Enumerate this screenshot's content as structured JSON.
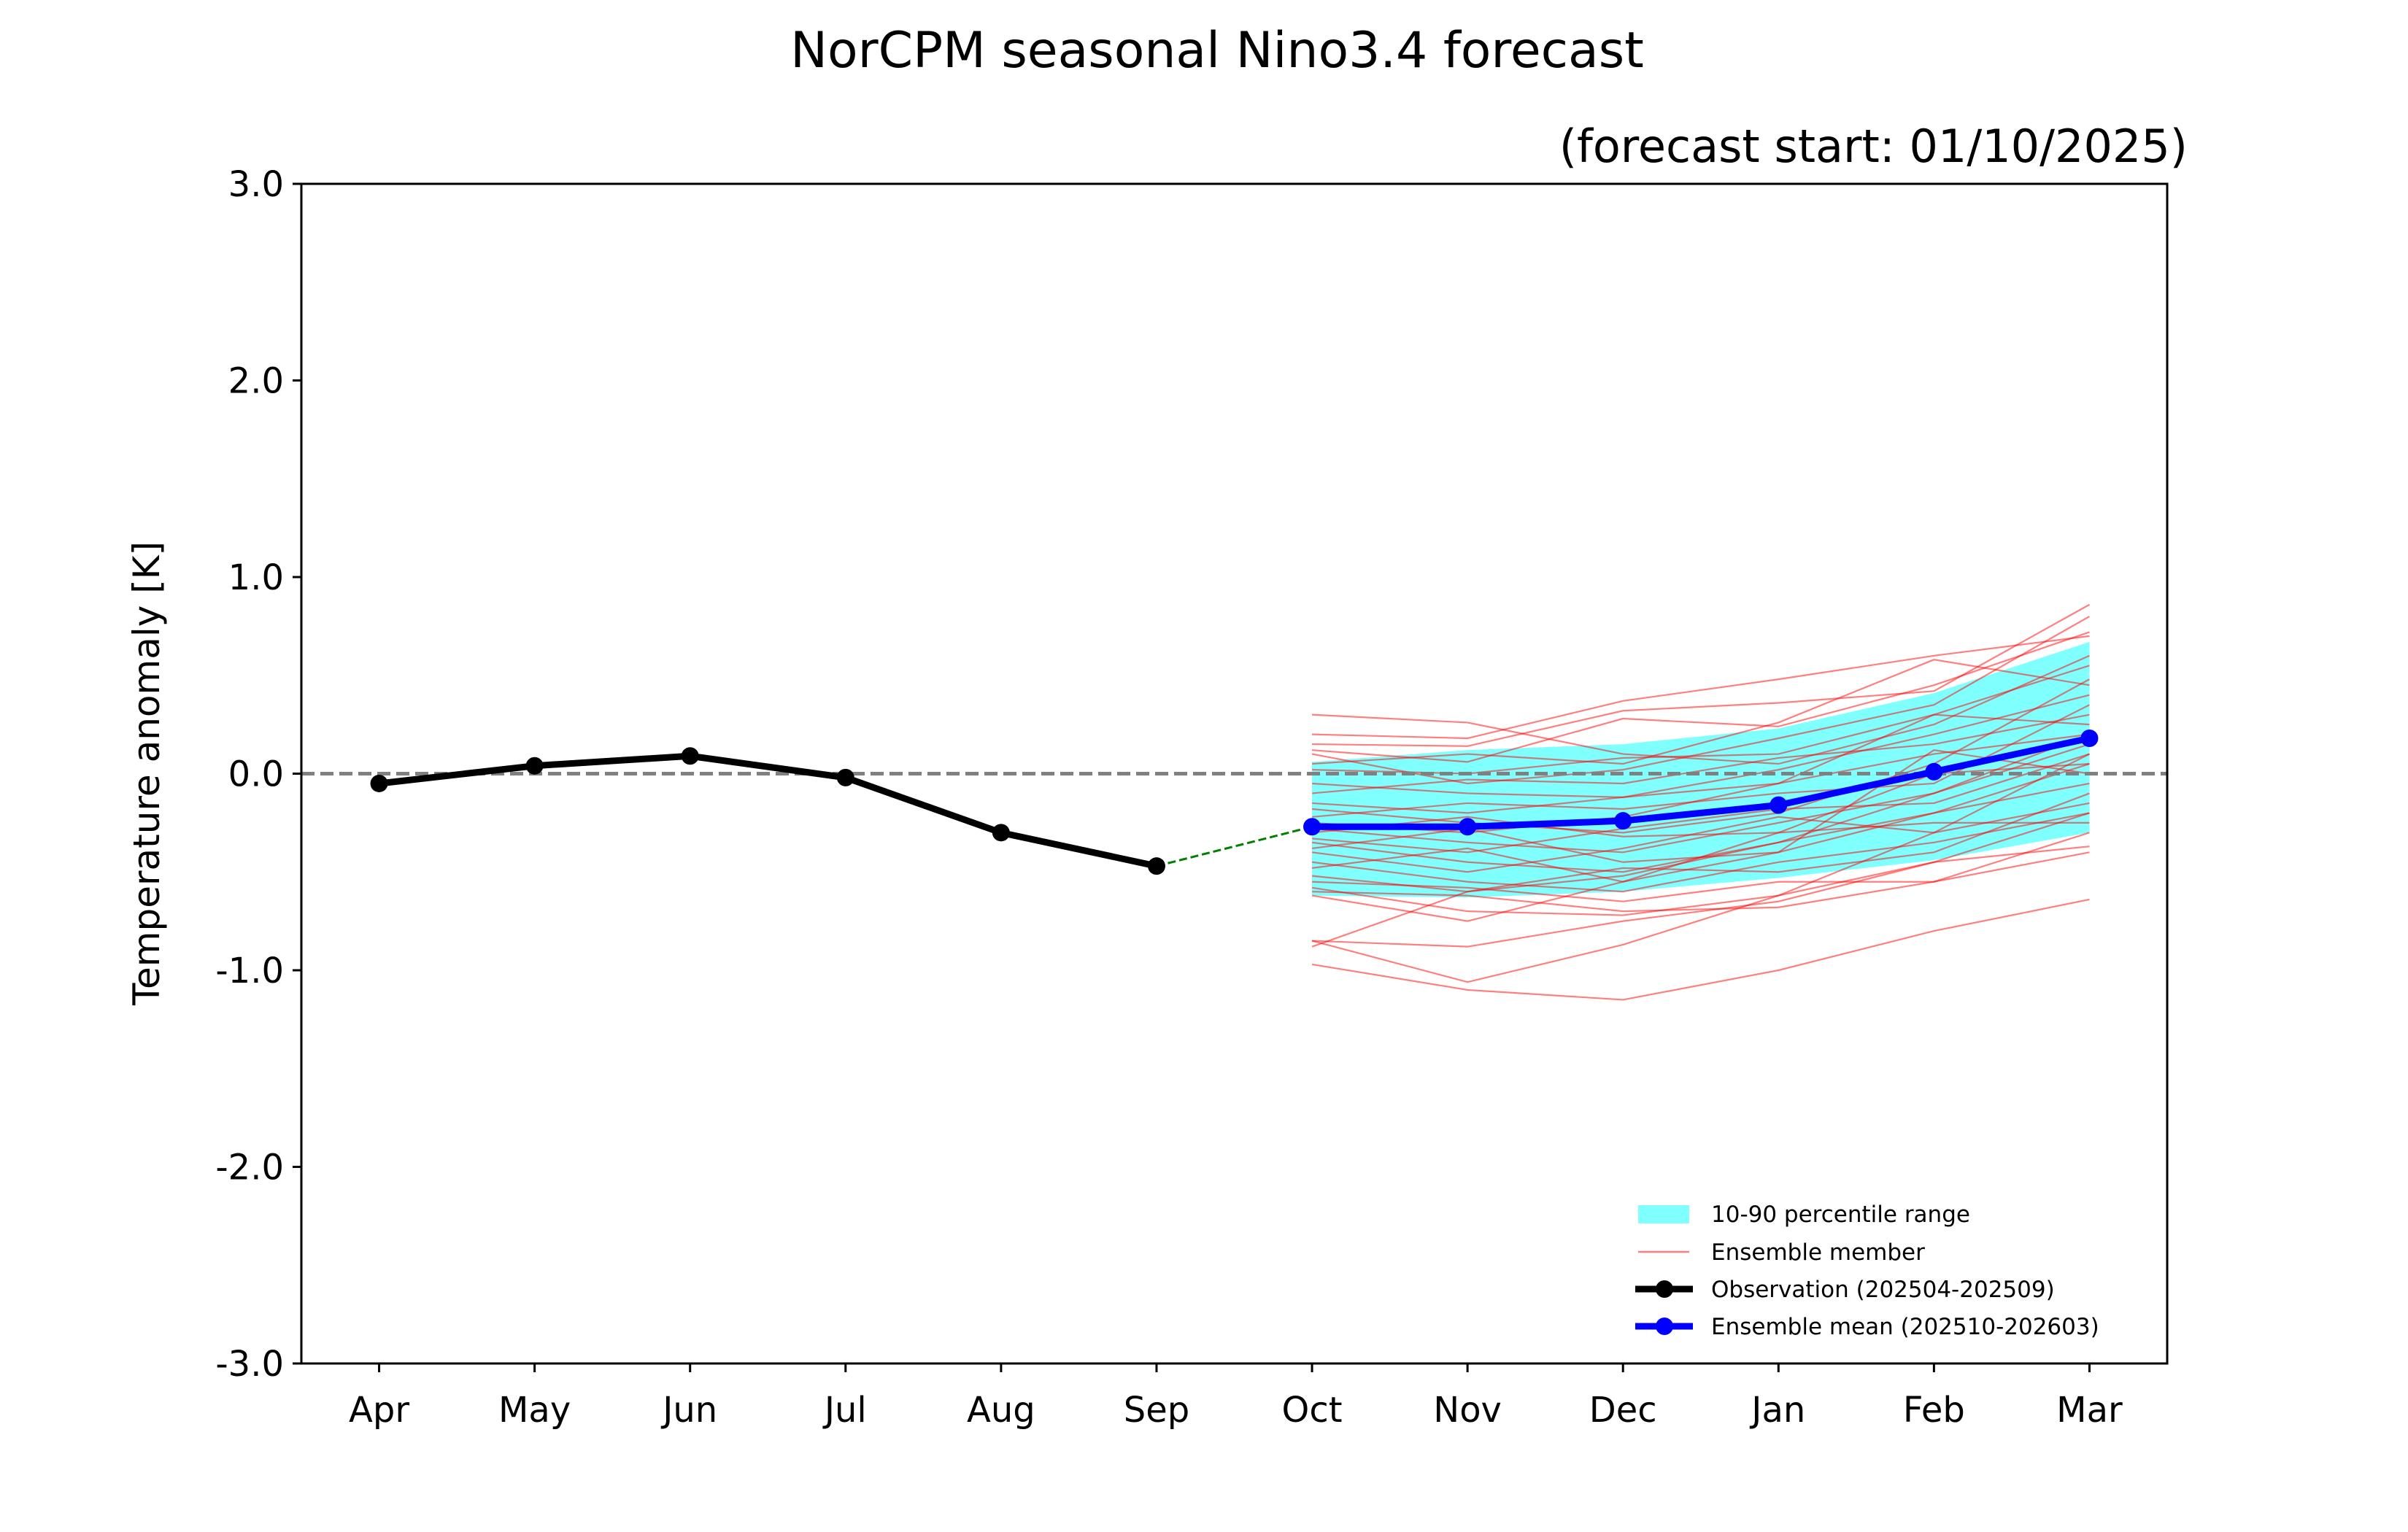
{
  "chart_data": {
    "type": "line",
    "title": "NorCPM seasonal Nino3.4 forecast",
    "subtitle": "(forecast start: 01/10/2025)",
    "xlabel": "",
    "ylabel": "Temperature anomaly [K]",
    "ylim": [
      -3.0,
      3.0
    ],
    "yticks": [
      "3.0",
      "2.0",
      "1.0",
      "0.0",
      "-1.0",
      "-2.0",
      "-3.0"
    ],
    "ytick_values": [
      3,
      2,
      1,
      0,
      -1,
      -2,
      -3
    ],
    "categories": [
      "Apr",
      "May",
      "Jun",
      "Jul",
      "Aug",
      "Sep",
      "Oct",
      "Nov",
      "Dec",
      "Jan",
      "Feb",
      "Mar"
    ],
    "zero_line": 0.0,
    "observation": {
      "name": "Observation (202504-202509)",
      "months": [
        "Apr",
        "May",
        "Jun",
        "Jul",
        "Aug",
        "Sep"
      ],
      "values": [
        -0.05,
        0.04,
        0.09,
        -0.02,
        -0.3,
        -0.47
      ],
      "color": "#000000"
    },
    "ensemble_mean": {
      "name": "Ensemble mean (202510-202603)",
      "months": [
        "Oct",
        "Nov",
        "Dec",
        "Jan",
        "Feb",
        "Mar"
      ],
      "values": [
        -0.27,
        -0.27,
        -0.24,
        -0.16,
        0.01,
        0.18
      ],
      "color": "#0000ff"
    },
    "connector": {
      "from": "Sep",
      "to": "Oct",
      "values": [
        -0.47,
        -0.27
      ],
      "color": "#008000"
    },
    "percentile_range": {
      "name": "10-90 percentile range",
      "months": [
        "Oct",
        "Nov",
        "Dec",
        "Jan",
        "Feb",
        "Mar"
      ],
      "lower": [
        -0.62,
        -0.63,
        -0.6,
        -0.53,
        -0.44,
        -0.3
      ],
      "upper": [
        0.06,
        0.12,
        0.15,
        0.23,
        0.41,
        0.67
      ],
      "color": "#80ffff"
    },
    "ensemble_members": {
      "name": "Ensemble member",
      "color": "#ff0000",
      "months": [
        "Oct",
        "Nov",
        "Dec",
        "Jan",
        "Feb",
        "Mar"
      ],
      "members": [
        [
          0.3,
          0.26,
          0.1,
          0.05,
          0.25,
          0.6
        ],
        [
          0.2,
          0.18,
          0.37,
          0.48,
          0.6,
          0.7
        ],
        [
          0.15,
          0.14,
          0.32,
          0.36,
          0.42,
          0.86
        ],
        [
          0.12,
          0.06,
          0.28,
          0.24,
          0.45,
          0.72
        ],
        [
          0.1,
          -0.05,
          0.02,
          0.18,
          0.35,
          0.8
        ],
        [
          0.05,
          0.1,
          0.05,
          0.26,
          0.58,
          0.45
        ],
        [
          0.02,
          0.0,
          0.08,
          0.1,
          0.3,
          0.55
        ],
        [
          -0.05,
          -0.1,
          -0.12,
          0.02,
          0.2,
          0.4
        ],
        [
          -0.1,
          -0.03,
          -0.05,
          0.08,
          0.15,
          0.3
        ],
        [
          -0.15,
          -0.2,
          -0.12,
          -0.05,
          0.3,
          0.25
        ],
        [
          -0.18,
          -0.25,
          -0.3,
          -0.2,
          0.05,
          0.48
        ],
        [
          -0.22,
          -0.15,
          -0.18,
          -0.1,
          -0.05,
          0.35
        ],
        [
          -0.25,
          -0.3,
          -0.22,
          -0.05,
          0.1,
          0.2
        ],
        [
          -0.28,
          -0.35,
          -0.4,
          -0.25,
          -0.1,
          0.15
        ],
        [
          -0.3,
          -0.22,
          -0.32,
          -0.3,
          0.0,
          0.05
        ],
        [
          -0.33,
          -0.4,
          -0.28,
          -0.18,
          -0.15,
          0.1
        ],
        [
          -0.35,
          -0.45,
          -0.5,
          -0.35,
          -0.2,
          -0.05
        ],
        [
          -0.38,
          -0.28,
          -0.45,
          -0.4,
          0.12,
          0.0
        ],
        [
          -0.4,
          -0.5,
          -0.38,
          -0.22,
          -0.3,
          -0.15
        ],
        [
          -0.45,
          -0.55,
          -0.6,
          -0.45,
          -0.35,
          -0.2
        ],
        [
          -0.48,
          -0.38,
          -0.55,
          -0.3,
          -0.25,
          -0.25
        ],
        [
          -0.52,
          -0.6,
          -0.48,
          -0.5,
          -0.4,
          -0.1
        ],
        [
          -0.55,
          -0.58,
          -0.65,
          -0.55,
          -0.55,
          -0.3
        ],
        [
          -0.58,
          -0.7,
          -0.72,
          -0.62,
          -0.45,
          -0.37
        ],
        [
          -0.6,
          -0.62,
          -0.7,
          -0.68,
          -0.55,
          -0.4
        ],
        [
          -0.62,
          -0.75,
          -0.55,
          -0.4,
          -0.2,
          0.05
        ],
        [
          -0.85,
          -0.88,
          -0.75,
          -0.65,
          -0.45,
          -0.2
        ],
        [
          -0.88,
          -0.6,
          -0.52,
          -0.35,
          -0.1,
          0.2
        ],
        [
          -0.85,
          -1.06,
          -0.87,
          -0.62,
          -0.3,
          0.1
        ],
        [
          -0.97,
          -1.1,
          -1.15,
          -1.0,
          -0.8,
          -0.64
        ]
      ]
    },
    "legend": {
      "placement": "lower-right",
      "entries": [
        "10-90 percentile range",
        "Ensemble member",
        "Observation (202504-202509)",
        "Ensemble mean (202510-202603)"
      ]
    }
  }
}
